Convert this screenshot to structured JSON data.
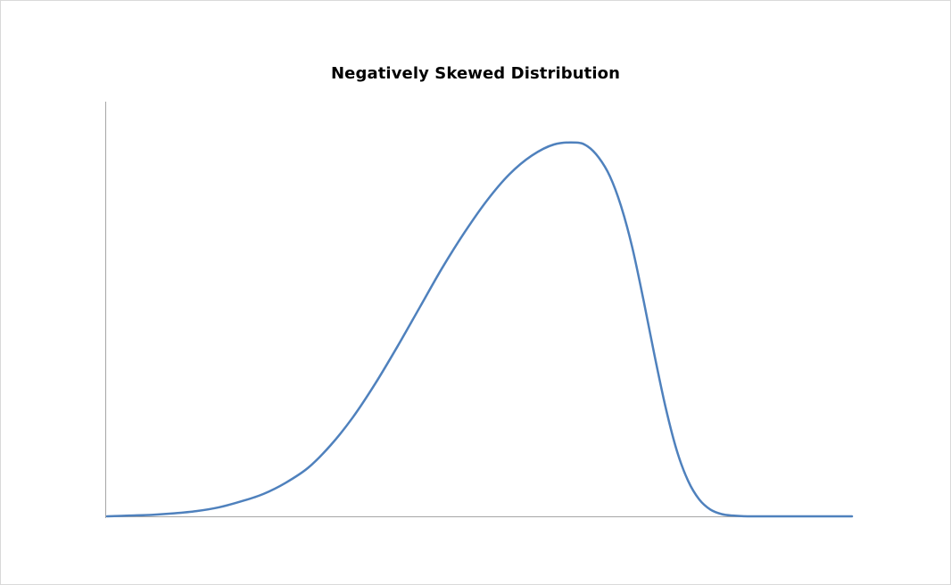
{
  "chart_data": {
    "type": "line",
    "title": "Negatively Skewed Distribution",
    "xlabel": "",
    "ylabel": "",
    "xlim": [
      0,
      100
    ],
    "ylim": [
      0,
      1.1
    ],
    "grid": false,
    "legend": "none",
    "series": [
      {
        "color": "#4F81BD",
        "x": [
          0,
          3,
          6,
          9,
          12,
          15,
          18,
          21,
          24,
          27,
          30,
          33,
          36,
          39,
          42,
          45,
          48,
          51,
          54,
          57,
          60,
          63,
          64.5,
          66,
          67.5,
          69,
          70.5,
          72,
          73.5,
          75,
          76.5,
          78,
          79.5,
          81,
          82.5,
          84,
          86,
          88,
          92,
          96,
          100
        ],
        "y": [
          0.0,
          0.002,
          0.004,
          0.008,
          0.014,
          0.024,
          0.04,
          0.06,
          0.09,
          0.13,
          0.19,
          0.265,
          0.355,
          0.455,
          0.56,
          0.665,
          0.76,
          0.845,
          0.915,
          0.965,
          0.995,
          1.0,
          0.99,
          0.96,
          0.91,
          0.83,
          0.72,
          0.58,
          0.43,
          0.29,
          0.175,
          0.095,
          0.045,
          0.018,
          0.006,
          0.002,
          0.0,
          0.0,
          0.0,
          0.0,
          0.0
        ]
      }
    ]
  },
  "colors": {
    "axis": "#a6a6a6",
    "series": "#4F81BD",
    "border": "#d9d9d9"
  }
}
